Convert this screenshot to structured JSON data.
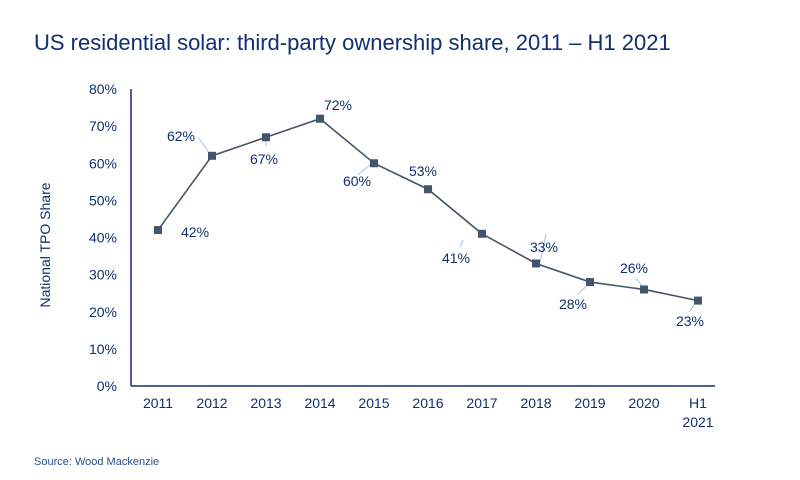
{
  "chart_data": {
    "type": "line",
    "title": "US residential solar: third-party ownership share, 2011 – H1 2021",
    "ylabel": "National TPO Share",
    "xlabel": "",
    "categories": [
      "2011",
      "2012",
      "2013",
      "2014",
      "2015",
      "2016",
      "2017",
      "2018",
      "2019",
      "2020",
      "H1 2021"
    ],
    "series": [
      {
        "values": [
          42,
          62,
          67,
          72,
          60,
          53,
          41,
          33,
          28,
          26,
          23
        ]
      }
    ],
    "data_labels": [
      "42%",
      "62%",
      "67%",
      "72%",
      "60%",
      "53%",
      "41%",
      "33%",
      "28%",
      "26%",
      "23%"
    ],
    "ylim": [
      0,
      80
    ],
    "yticks": [
      "0%",
      "10%",
      "20%",
      "30%",
      "40%",
      "50%",
      "60%",
      "70%",
      "80%"
    ],
    "grid": false,
    "colors": {
      "line": "#44546a",
      "marker": "#44546a",
      "text": "#102f6e",
      "axis": "#102f6e",
      "leader": "#9dc3f0"
    }
  },
  "source": "Source: Wood Mackenzie"
}
